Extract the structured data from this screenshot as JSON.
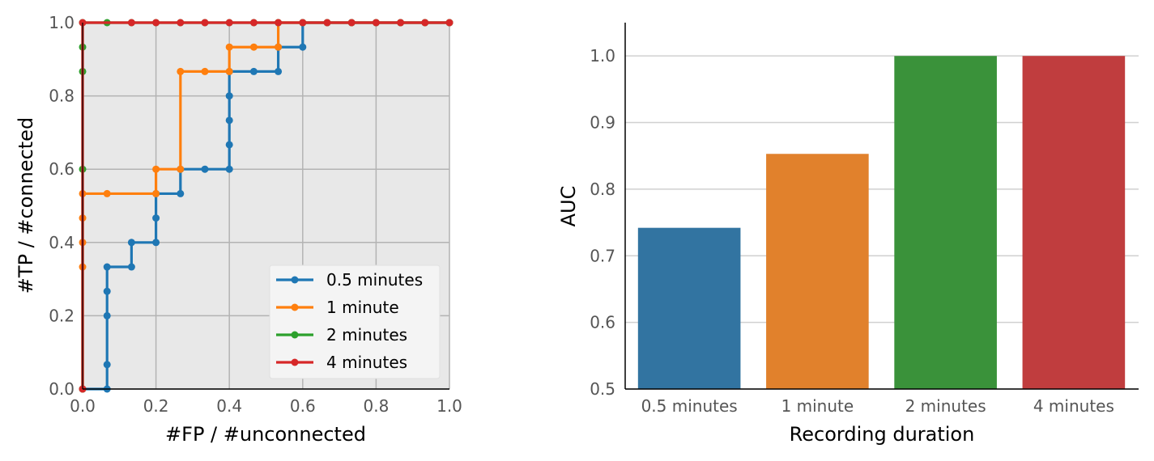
{
  "chart_data": [
    {
      "type": "line",
      "xlabel": "#FP / #unconnected",
      "ylabel": "#TP / #connected",
      "xlim": [
        0,
        1
      ],
      "ylim": [
        0,
        1
      ],
      "xticks": [
        "0.0",
        "0.2",
        "0.4",
        "0.6",
        "0.8",
        "1.0"
      ],
      "yticks": [
        "0.0",
        "0.2",
        "0.4",
        "0.6",
        "0.8",
        "1.0"
      ],
      "grid": true,
      "legend_position": "bottom-right",
      "step": true,
      "series": [
        {
          "name": "0.5 minutes",
          "color": "#1f77b4",
          "points": [
            [
              0,
              0
            ],
            [
              0.0667,
              0
            ],
            [
              0.0667,
              0.0667
            ],
            [
              0.0667,
              0.2
            ],
            [
              0.0667,
              0.2667
            ],
            [
              0.0667,
              0.3333
            ],
            [
              0.1333,
              0.3333
            ],
            [
              0.1333,
              0.4
            ],
            [
              0.2,
              0.4
            ],
            [
              0.2,
              0.4667
            ],
            [
              0.2,
              0.5333
            ],
            [
              0.2667,
              0.5333
            ],
            [
              0.2667,
              0.6
            ],
            [
              0.3333,
              0.6
            ],
            [
              0.4,
              0.6
            ],
            [
              0.4,
              0.6667
            ],
            [
              0.4,
              0.7333
            ],
            [
              0.4,
              0.8
            ],
            [
              0.4,
              0.8667
            ],
            [
              0.4667,
              0.8667
            ],
            [
              0.5333,
              0.8667
            ],
            [
              0.5333,
              0.9333
            ],
            [
              0.6,
              0.9333
            ],
            [
              0.6,
              1.0
            ],
            [
              0.6667,
              1.0
            ],
            [
              0.7333,
              1.0
            ],
            [
              0.8,
              1.0
            ],
            [
              0.8667,
              1.0
            ],
            [
              0.9333,
              1.0
            ],
            [
              1.0,
              1.0
            ]
          ]
        },
        {
          "name": "1 minute",
          "color": "#ff7f0e",
          "points": [
            [
              0,
              0
            ],
            [
              0,
              0.3333
            ],
            [
              0,
              0.4
            ],
            [
              0,
              0.4667
            ],
            [
              0,
              0.5333
            ],
            [
              0.0667,
              0.5333
            ],
            [
              0.2,
              0.5333
            ],
            [
              0.2,
              0.6
            ],
            [
              0.2667,
              0.6
            ],
            [
              0.2667,
              0.8667
            ],
            [
              0.3333,
              0.8667
            ],
            [
              0.4,
              0.8667
            ],
            [
              0.4,
              0.9333
            ],
            [
              0.4667,
              0.9333
            ],
            [
              0.5333,
              0.9333
            ],
            [
              0.5333,
              1.0
            ],
            [
              0.6,
              1.0
            ],
            [
              0.6667,
              1.0
            ],
            [
              0.7333,
              1.0
            ],
            [
              0.8,
              1.0
            ],
            [
              0.8667,
              1.0
            ],
            [
              0.9333,
              1.0
            ],
            [
              1.0,
              1.0
            ]
          ]
        },
        {
          "name": "2 minutes",
          "color": "#2ca02c",
          "points": [
            [
              0,
              0
            ],
            [
              0,
              0.6
            ],
            [
              0,
              0.8667
            ],
            [
              0,
              0.9333
            ],
            [
              0,
              1.0
            ],
            [
              0.0667,
              1.0
            ],
            [
              0.1333,
              1.0
            ],
            [
              0.2,
              1.0
            ],
            [
              0.2667,
              1.0
            ],
            [
              0.3333,
              1.0
            ],
            [
              0.4,
              1.0
            ],
            [
              0.4667,
              1.0
            ],
            [
              0.5333,
              1.0
            ],
            [
              0.6,
              1.0
            ],
            [
              0.6667,
              1.0
            ],
            [
              0.7333,
              1.0
            ],
            [
              0.8,
              1.0
            ],
            [
              0.8667,
              1.0
            ],
            [
              0.9333,
              1.0
            ],
            [
              1.0,
              1.0
            ]
          ]
        },
        {
          "name": "4 minutes",
          "color": "#d62728",
          "points": [
            [
              0,
              0
            ],
            [
              0,
              1.0
            ],
            [
              0.1333,
              1.0
            ],
            [
              0.2,
              1.0
            ],
            [
              0.2667,
              1.0
            ],
            [
              0.3333,
              1.0
            ],
            [
              0.4,
              1.0
            ],
            [
              0.4667,
              1.0
            ],
            [
              0.5333,
              1.0
            ],
            [
              0.6,
              1.0
            ],
            [
              0.6667,
              1.0
            ],
            [
              0.7333,
              1.0
            ],
            [
              0.8,
              1.0
            ],
            [
              0.8667,
              1.0
            ],
            [
              0.9333,
              1.0
            ],
            [
              1.0,
              1.0
            ]
          ]
        }
      ]
    },
    {
      "type": "bar",
      "xlabel": "Recording duration",
      "ylabel": "AUC",
      "ylim": [
        0.5,
        1.05
      ],
      "yticks": [
        "0.5",
        "0.6",
        "0.7",
        "0.8",
        "0.9",
        "1.0"
      ],
      "grid": true,
      "categories": [
        "0.5 minutes",
        "1 minute",
        "2 minutes",
        "4 minutes"
      ],
      "values": [
        0.742,
        0.853,
        1.0,
        1.0
      ],
      "colors": [
        "#3274a1",
        "#e1812c",
        "#3a923a",
        "#c03d3e"
      ]
    }
  ]
}
